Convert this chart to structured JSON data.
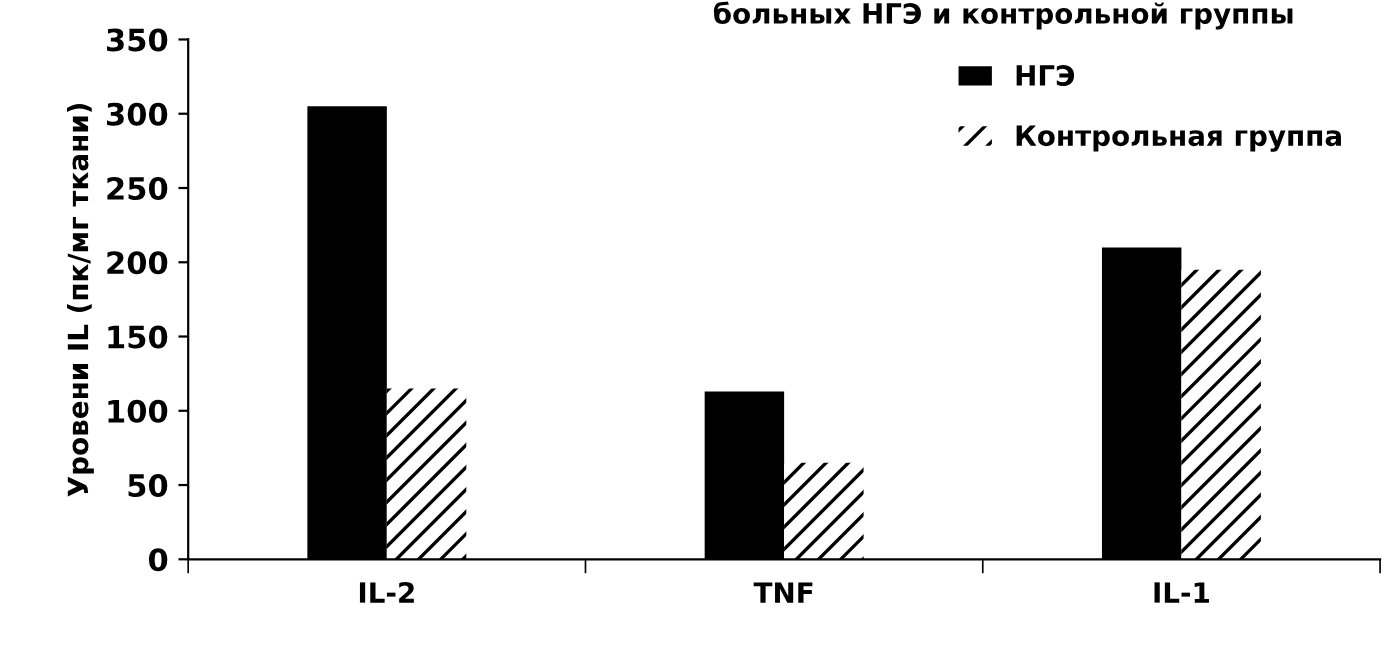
{
  "chart_data": {
    "type": "bar",
    "title": "больных НГЭ и контрольной группы",
    "ylabel": "Уровени IL (пк/мг ткани)",
    "categories": [
      "IL-2",
      "TNF",
      "IL-1"
    ],
    "series": [
      {
        "name": "НГЭ",
        "color": "#000000",
        "values": [
          305,
          113,
          210
        ]
      },
      {
        "name": "Контрольная группа",
        "color": "#ffffff",
        "values": [
          115,
          65,
          195
        ]
      }
    ],
    "ylim": [
      0,
      350
    ],
    "yticks": [
      0,
      50,
      100,
      150,
      200,
      250,
      300,
      350
    ],
    "grid": false,
    "legend": "top right"
  }
}
